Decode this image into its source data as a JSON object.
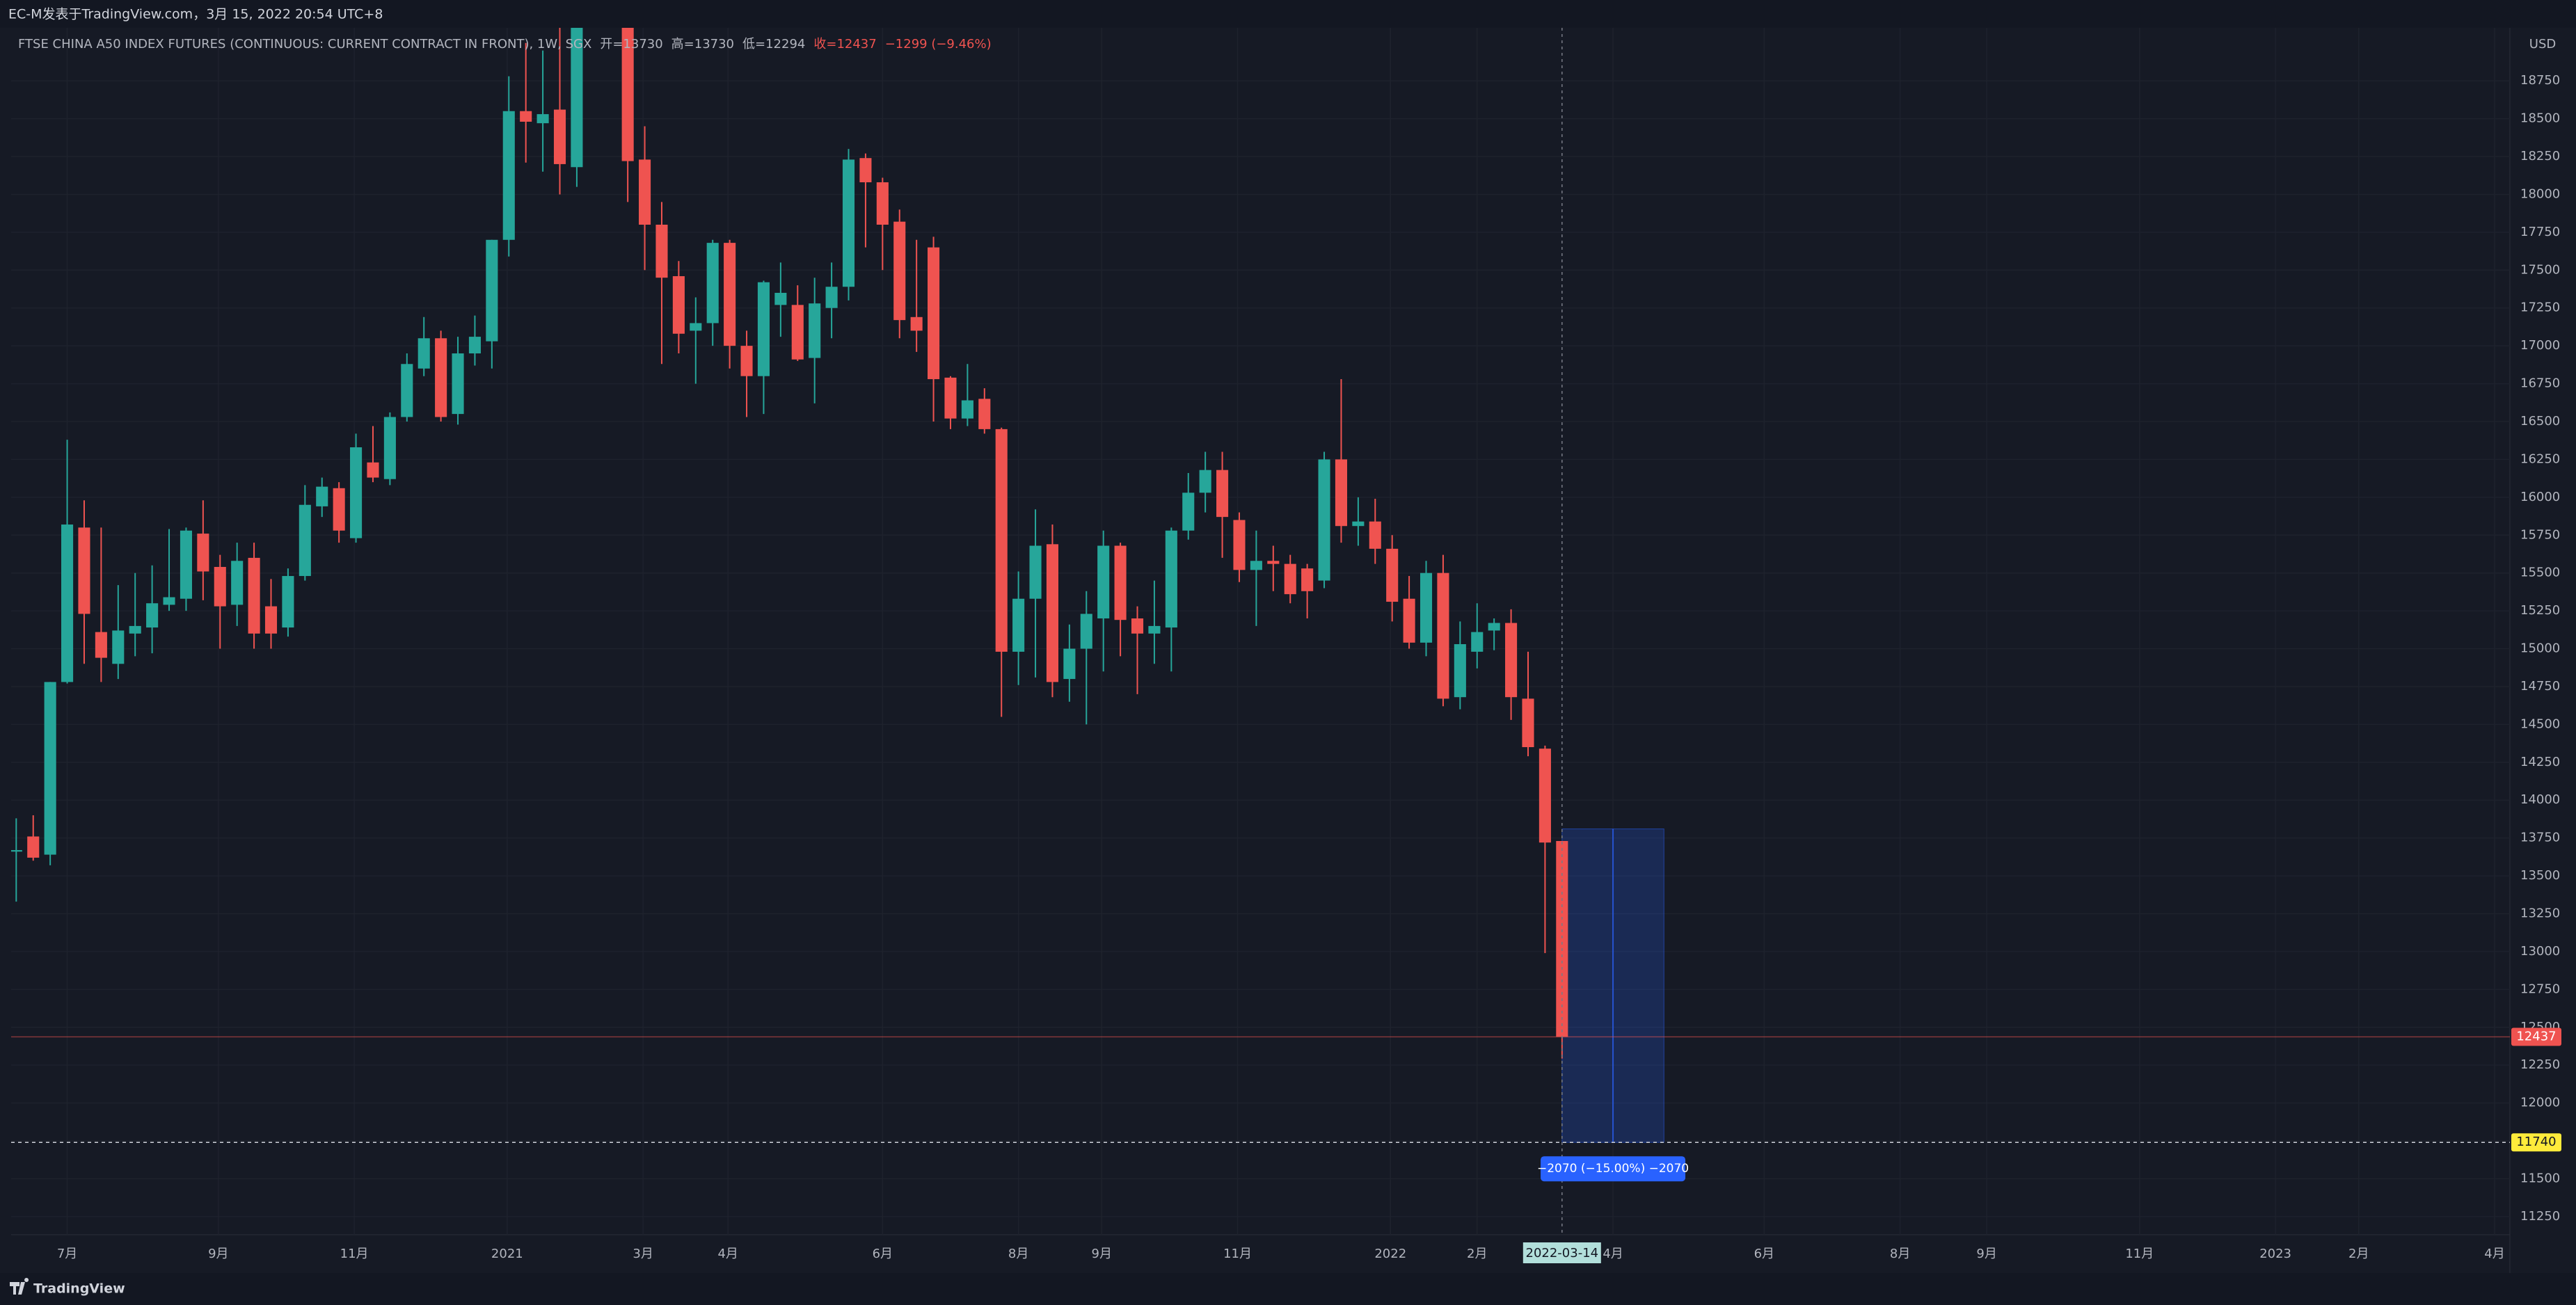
{
  "header_text": "EC-M发表于TradingView.com，3月 15, 2022 20:54 UTC+8",
  "footer_text": "TradingView",
  "chart_data": {
    "type": "candlestick",
    "title": "FTSE CHINA A50 INDEX FUTURES (CONTINUOUS: CURRENT CONTRACT IN FRONT), 1W, SGX",
    "legend_ohlc": [
      "开=13730",
      "高=13730",
      "低=12294",
      "收=12437",
      "−1299 (−9.46%)"
    ],
    "currency": "USD",
    "up_color": "#26a69a",
    "down_color": "#ef5350",
    "grid": true,
    "categories": [
      null,
      null,
      null,
      null,
      null,
      null,
      null,
      null,
      null,
      null,
      null,
      null,
      null,
      null,
      null,
      null,
      null,
      null,
      null,
      null,
      null,
      null,
      null,
      null,
      null,
      null,
      null,
      null,
      null,
      null,
      null,
      null,
      null,
      null,
      null,
      null,
      null,
      null,
      null,
      null,
      null,
      null,
      null,
      null,
      null,
      null,
      null,
      null,
      null,
      null,
      null,
      null,
      null,
      null,
      null,
      null,
      null,
      null,
      null,
      null,
      null,
      null,
      null,
      null,
      null,
      null,
      null,
      null,
      null,
      null,
      null,
      null,
      null,
      null,
      null,
      null,
      null,
      null,
      null,
      null,
      null,
      null,
      null,
      null,
      null,
      null,
      null,
      null,
      null,
      null,
      null,
      "2022-03-14"
    ],
    "open": [
      13660,
      13760,
      13640,
      14780,
      15800,
      15110,
      14900,
      15100,
      15140,
      15290,
      15330,
      15760,
      15540,
      15290,
      15600,
      15280,
      15140,
      15480,
      15940,
      16060,
      15730,
      16230,
      16120,
      16530,
      16850,
      17050,
      16550,
      16950,
      17030,
      17700,
      18550,
      18470,
      18560,
      18180,
      null,
      null,
      19400,
      18230,
      17800,
      17460,
      17100,
      17150,
      17680,
      17000,
      16800,
      17270,
      17270,
      16920,
      17250,
      17390,
      18240,
      18080,
      17820,
      17190,
      17650,
      16790,
      16520,
      16650,
      16450,
      14980,
      15330,
      15690,
      14800,
      15000,
      15200,
      15680,
      15200,
      15100,
      15140,
      15780,
      16030,
      16180,
      15850,
      15520,
      15580,
      15560,
      15530,
      15450,
      16250,
      15810,
      15840,
      15660,
      15330,
      15040,
      15500,
      14680,
      14980,
      15120,
      15170,
      14670,
      14340,
      13730
    ],
    "high": [
      13880,
      13900,
      14780,
      16380,
      15980,
      15800,
      15420,
      15500,
      15550,
      15790,
      15800,
      15980,
      15620,
      15700,
      15700,
      15460,
      15530,
      16080,
      16130,
      16100,
      16420,
      16470,
      16560,
      16950,
      17190,
      17100,
      17060,
      17200,
      17700,
      18780,
      19000,
      18950,
      19150,
      19300,
      null,
      null,
      19500,
      18450,
      17950,
      17560,
      17320,
      17700,
      17700,
      17100,
      17430,
      17550,
      17400,
      17450,
      17550,
      18300,
      18270,
      18110,
      17900,
      17700,
      17720,
      16800,
      16880,
      16720,
      16460,
      15510,
      15920,
      15820,
      15160,
      15380,
      15780,
      15700,
      15280,
      15450,
      15800,
      16160,
      16300,
      16300,
      15900,
      15780,
      15680,
      15620,
      15560,
      16300,
      16780,
      16000,
      15990,
      15750,
      15480,
      15580,
      15620,
      15180,
      15300,
      15200,
      15260,
      14980,
      14360,
      13730
    ],
    "low": [
      13330,
      13600,
      13570,
      14770,
      14900,
      14780,
      14800,
      14950,
      14970,
      15250,
      15250,
      15320,
      15000,
      15150,
      15000,
      15000,
      15080,
      15450,
      15870,
      15700,
      15700,
      16100,
      16080,
      16500,
      16800,
      16500,
      16480,
      16870,
      16850,
      17590,
      18210,
      18150,
      18000,
      18050,
      null,
      null,
      17950,
      17500,
      16880,
      16950,
      16750,
      17000,
      16850,
      16530,
      16550,
      17060,
      16900,
      16620,
      17050,
      17300,
      17650,
      17500,
      17050,
      16960,
      16500,
      16450,
      16470,
      16420,
      14550,
      14760,
      14810,
      14680,
      14650,
      14500,
      14850,
      14950,
      14700,
      14900,
      14850,
      15720,
      15900,
      15600,
      15440,
      15150,
      15380,
      15300,
      15200,
      15400,
      15700,
      15680,
      15560,
      15180,
      15000,
      14950,
      14620,
      14600,
      14870,
      14990,
      14530,
      14290,
      12990,
      12294
    ],
    "close": [
      13670,
      13620,
      14780,
      15820,
      15230,
      14940,
      15120,
      15150,
      15300,
      15340,
      15780,
      15510,
      15280,
      15580,
      15100,
      15100,
      15480,
      15950,
      16070,
      15780,
      16330,
      16130,
      16530,
      16880,
      17050,
      16530,
      16950,
      17060,
      17700,
      18550,
      18480,
      18530,
      18200,
      19300,
      null,
      null,
      18220,
      17800,
      17450,
      17080,
      17150,
      17680,
      17000,
      16800,
      17420,
      17350,
      16910,
      17280,
      17390,
      18230,
      18080,
      17800,
      17170,
      17100,
      16780,
      16520,
      16640,
      16450,
      14980,
      15330,
      15680,
      14780,
      15000,
      15230,
      15680,
      15190,
      15100,
      15150,
      15780,
      16030,
      16180,
      15870,
      15520,
      15580,
      15560,
      15360,
      15380,
      16250,
      15810,
      15840,
      15660,
      15310,
      15040,
      15500,
      14670,
      15030,
      15110,
      15170,
      14680,
      14350,
      13720,
      12437
    ],
    "ylim": [
      11130,
      19100
    ],
    "yticks": [
      11250,
      11500,
      11750,
      12000,
      12250,
      12500,
      12750,
      13000,
      13250,
      13500,
      13750,
      14000,
      14250,
      14500,
      14750,
      15000,
      15250,
      15500,
      15750,
      16000,
      16250,
      16500,
      16750,
      17000,
      17250,
      17500,
      17750,
      18000,
      18250,
      18500,
      18750
    ],
    "xlim": [
      -0.3,
      146.8
    ],
    "xticks": [
      {
        "value": 3.0,
        "label": "7月"
      },
      {
        "value": 11.9,
        "label": "9月"
      },
      {
        "value": 19.9,
        "label": "11月"
      },
      {
        "value": 28.9,
        "label": "2021"
      },
      {
        "value": 36.9,
        "label": "3月"
      },
      {
        "value": 41.9,
        "label": "4月"
      },
      {
        "value": 51.0,
        "label": "6月"
      },
      {
        "value": 59.0,
        "label": "8月"
      },
      {
        "value": 63.9,
        "label": "9月"
      },
      {
        "value": 71.9,
        "label": "11月"
      },
      {
        "value": 80.9,
        "label": "2022"
      },
      {
        "value": 86.0,
        "label": "2月"
      },
      {
        "value": 94.0,
        "label": "4月"
      },
      {
        "value": 102.9,
        "label": "6月"
      },
      {
        "value": 110.9,
        "label": "8月"
      },
      {
        "value": 116.0,
        "label": "9月"
      },
      {
        "value": 125.0,
        "label": "11月"
      },
      {
        "value": 133.0,
        "label": "2023"
      },
      {
        "value": 137.9,
        "label": "2月"
      },
      {
        "value": 145.9,
        "label": "4月"
      }
    ],
    "last_price": 12437,
    "target_price": 11740,
    "measure": {
      "from": 13810,
      "to": 11740,
      "x": [
        91,
        97
      ],
      "label": "−2070 (−15.00%) −2070"
    },
    "crosshair_index": 91
  }
}
